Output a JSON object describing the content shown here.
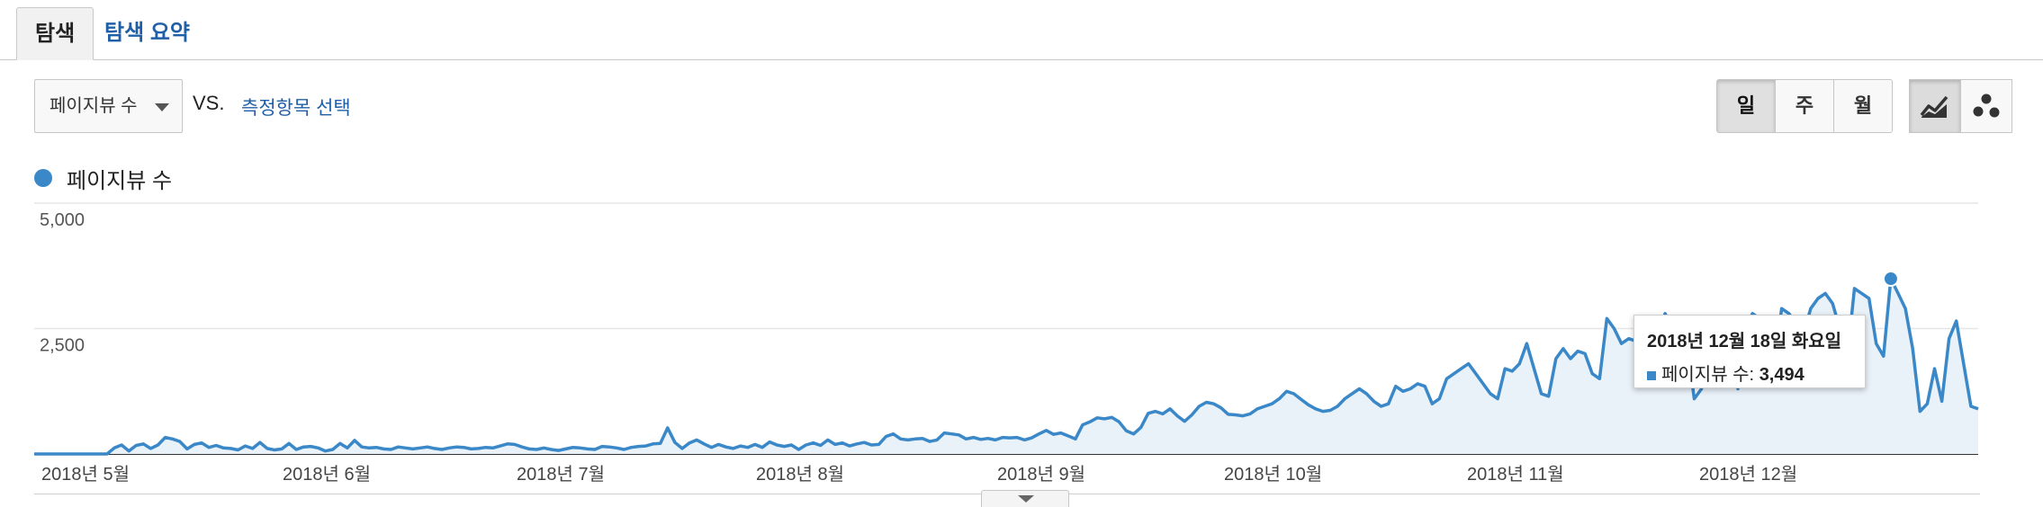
{
  "tabs": [
    {
      "label": "탐색",
      "active": true
    },
    {
      "label": "탐색 요약",
      "active": false
    }
  ],
  "controls": {
    "metric": "페이지뷰 수",
    "vs": "VS.",
    "compare_link": "측정항목 선택",
    "granularity": [
      "일",
      "주",
      "월"
    ],
    "granularity_active": "일",
    "view_icons": [
      "line-chart-icon",
      "motion-chart-icon"
    ],
    "view_active": "line-chart-icon"
  },
  "legend": {
    "label": "페이지뷰 수",
    "color": "#3a88c8"
  },
  "tooltip": {
    "date": "2018년 12월 18일 화요일",
    "metric": "페이지뷰 수:",
    "value": "3,494"
  },
  "chart_data": {
    "type": "area",
    "series": [
      {
        "name": "페이지뷰 수",
        "color": "#3a88c8",
        "fill": "#e9f1f9",
        "values": [
          0,
          0,
          0,
          0,
          0,
          0,
          0,
          0,
          0,
          0,
          0,
          120,
          180,
          60,
          170,
          200,
          110,
          180,
          330,
          300,
          250,
          100,
          190,
          220,
          130,
          170,
          120,
          110,
          80,
          160,
          110,
          230,
          110,
          80,
          100,
          210,
          90,
          140,
          150,
          120,
          60,
          90,
          210,
          120,
          270,
          140,
          120,
          130,
          100,
          90,
          140,
          120,
          100,
          120,
          140,
          110,
          90,
          120,
          140,
          130,
          100,
          110,
          130,
          120,
          160,
          200,
          190,
          140,
          100,
          90,
          120,
          90,
          70,
          100,
          130,
          120,
          100,
          90,
          150,
          140,
          120,
          90,
          130,
          150,
          160,
          200,
          210,
          520,
          230,
          110,
          220,
          280,
          200,
          130,
          190,
          140,
          110,
          160,
          130,
          190,
          130,
          240,
          180,
          150,
          180,
          90,
          180,
          220,
          170,
          280,
          190,
          220,
          160,
          200,
          230,
          180,
          190,
          350,
          400,
          300,
          280,
          300,
          310,
          250,
          280,
          420,
          400,
          380,
          300,
          330,
          290,
          310,
          280,
          330,
          320,
          330,
          280,
          320,
          400,
          470,
          390,
          420,
          360,
          300,
          580,
          640,
          720,
          700,
          730,
          640,
          460,
          400,
          530,
          810,
          850,
          800,
          900,
          760,
          650,
          780,
          950,
          1030,
          1000,
          920,
          790,
          780,
          760,
          800,
          900,
          950,
          1000,
          1100,
          1250,
          1200,
          1090,
          980,
          900,
          850,
          870,
          950,
          1100,
          1200,
          1300,
          1200,
          1050,
          950,
          1000,
          1350,
          1250,
          1300,
          1400,
          1350,
          1000,
          1100,
          1500,
          1600,
          1700,
          1800,
          1600,
          1400,
          1200,
          1100,
          1700,
          1650,
          1800,
          2200,
          1700,
          1200,
          1150,
          1900,
          2100,
          1900,
          2050,
          2000,
          1600,
          1500,
          2700,
          2500,
          2200,
          2300,
          2250,
          1400,
          1350,
          2400,
          2800,
          2500,
          2300,
          2200,
          1100,
          1300,
          2600,
          2700,
          2400,
          2200,
          1300,
          2500,
          2800,
          2700,
          2600,
          1800,
          2900,
          2800,
          2600,
          2400,
          2900,
          3100,
          3200,
          3000,
          2500,
          1900,
          3300,
          3200,
          3100,
          2200,
          1950,
          3494,
          3200,
          2900,
          2100,
          850,
          1000,
          1700,
          1050,
          2300,
          2650,
          1800,
          950,
          900
        ]
      }
    ],
    "x_labels": [
      "2018년 5월",
      "2018년 6월",
      "2018년 7월",
      "2018년 8월",
      "2018년 9월",
      "2018년 10월",
      "2018년 11월",
      "2018년 12월"
    ],
    "y_ticks": [
      "5,000",
      "2,500"
    ],
    "ylim": [
      0,
      5000
    ],
    "highlight_value": 3494
  }
}
